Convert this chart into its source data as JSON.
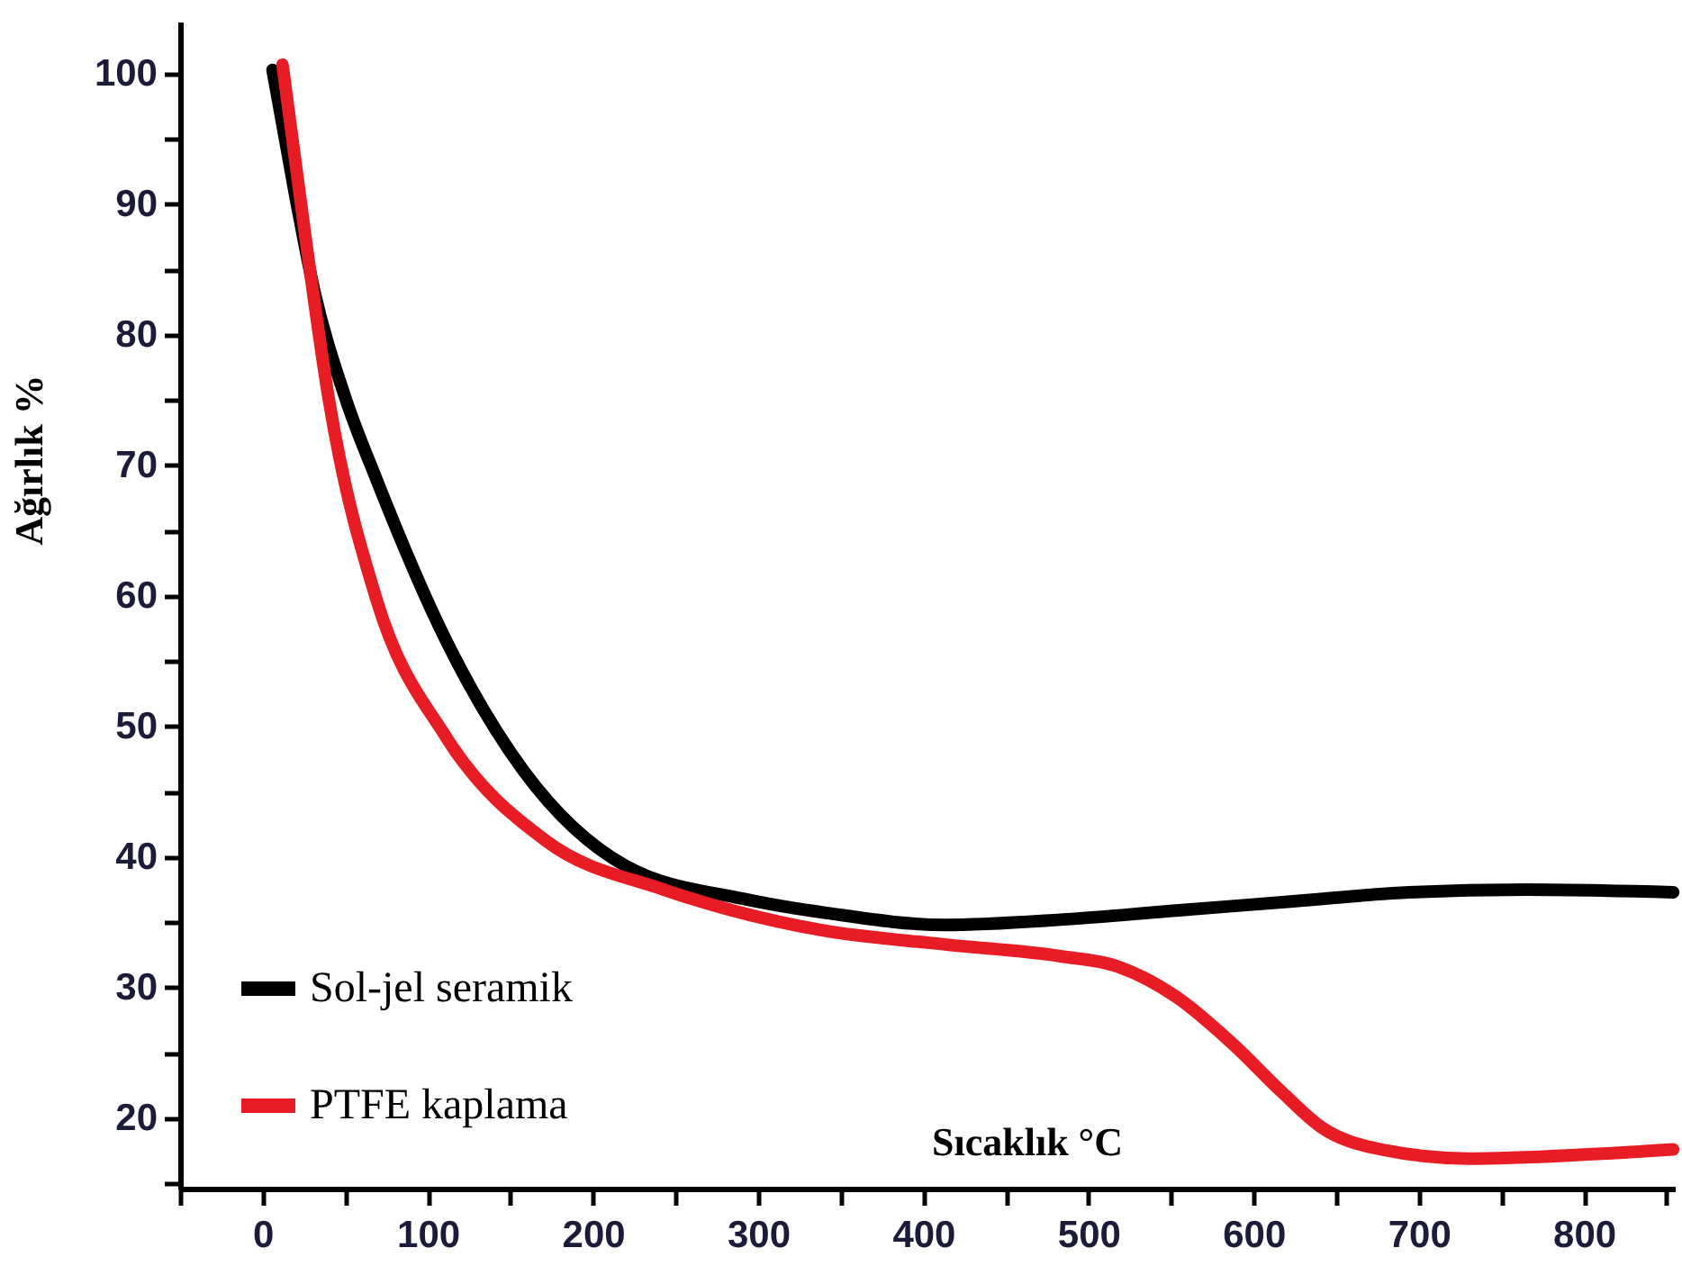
{
  "chart_data": {
    "type": "line",
    "xlabel": "Sıcaklık °C",
    "ylabel": "Ağırlık %",
    "xlim": [
      -50,
      855
    ],
    "ylim": [
      14.6,
      104
    ],
    "xticks": [
      {
        "value": -50,
        "label": null
      },
      0,
      {
        "value": 50,
        "label": null
      },
      100,
      {
        "value": 150,
        "label": null
      },
      200,
      {
        "value": 250,
        "label": null
      },
      300,
      {
        "value": 350,
        "label": null
      },
      400,
      {
        "value": 450,
        "label": null
      },
      500,
      {
        "value": 550,
        "label": null
      },
      600,
      {
        "value": 650,
        "label": null
      },
      700,
      {
        "value": 750,
        "label": null
      },
      800,
      {
        "value": 850,
        "label": null
      }
    ],
    "yticks": [
      {
        "value": 15,
        "label": null
      },
      20,
      {
        "value": 25,
        "label": null
      },
      30,
      {
        "value": 35,
        "label": null
      },
      40,
      {
        "value": 45,
        "label": null
      },
      50,
      {
        "value": 55,
        "label": null
      },
      60,
      {
        "value": 65,
        "label": null
      },
      70,
      {
        "value": 75,
        "label": null
      },
      80,
      {
        "value": 85,
        "label": null
      },
      90,
      {
        "value": 95,
        "label": null
      },
      100
    ],
    "grid": false,
    "legend": "bottom left",
    "line_style": "solid",
    "marker": "none",
    "series": [
      {
        "name": "Sol-jel seramik",
        "color": "#000000",
        "x": [
          6,
          20,
          31,
          50,
          69,
          111,
          158,
          220,
          291,
          342,
          413,
          483,
          553,
          624,
          694,
          765,
          854
        ],
        "values": [
          100.3,
          90.5,
          83.5,
          75.2,
          68.9,
          56.6,
          46.6,
          39.3,
          36.8,
          35.7,
          34.8,
          35.2,
          35.9,
          36.6,
          37.3,
          37.5,
          37.3
        ]
      },
      {
        "name": "PTFE kaplama",
        "color": "#e81c24",
        "x": [
          12,
          26,
          40,
          69,
          111,
          172,
          243,
          338,
          413,
          483,
          518,
          553,
          588,
          617,
          641,
          677,
          730,
          800,
          854
        ],
        "values": [
          100.7,
          87.4,
          75.1,
          59.7,
          49.2,
          41.2,
          37.5,
          34.4,
          33.3,
          32.4,
          31.6,
          29.3,
          25.6,
          22,
          19.3,
          17.6,
          16.9,
          17.2,
          17.6
        ]
      }
    ]
  }
}
